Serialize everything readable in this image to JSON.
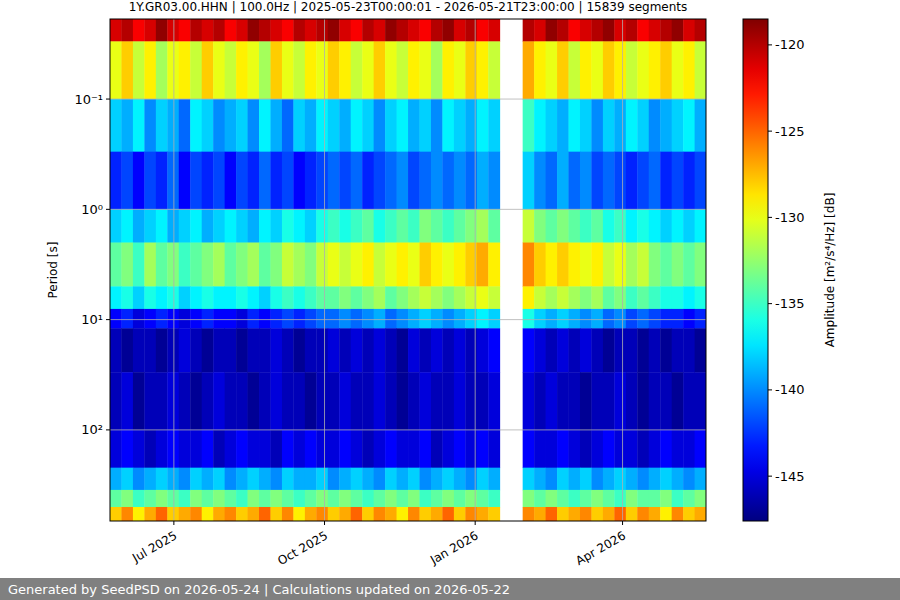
{
  "chart_data": {
    "type": "heatmap",
    "title": "1Y.GR03.00.HHN | 100.0Hz | 2025-05-23T00:00:01 - 2026-05-21T23:00:00 | 15839 segments",
    "ylabel": "Period [s]",
    "footer": "Generated by SeedPSD on 2026-05-24 | Calculations updated on 2026-05-22",
    "log": "y",
    "grid": true,
    "xlim": [
      "2025-05-23T00:00:01",
      "2026-05-21T23:00:00"
    ],
    "xticks": [
      {
        "value": "2025-07",
        "label": "Jul 2025"
      },
      {
        "value": "2025-10",
        "label": "Oct 2025"
      },
      {
        "value": "2026-01",
        "label": "Jan 2026"
      },
      {
        "value": "2026-04",
        "label": "Apr 2026"
      }
    ],
    "ylim": [
      0.0188,
      670
    ],
    "yticks": [
      {
        "value": 0.1,
        "label": "10⁻¹"
      },
      {
        "value": 1,
        "label": "10⁰"
      },
      {
        "value": 10,
        "label": "10¹"
      },
      {
        "value": 100,
        "label": "10²"
      }
    ],
    "x": [
      "2025-05-23",
      "2025-05-30",
      "2025-06-06",
      "2025-06-13",
      "2025-06-20",
      "2025-06-27",
      "2025-07-04",
      "2025-07-11",
      "2025-07-18",
      "2025-07-25",
      "2025-08-01",
      "2025-08-08",
      "2025-08-15",
      "2025-08-22",
      "2025-08-29",
      "2025-09-05",
      "2025-09-12",
      "2025-09-19",
      "2025-09-26",
      "2025-10-03",
      "2025-10-10",
      "2025-10-17",
      "2025-10-24",
      "2025-10-31",
      "2025-11-07",
      "2025-11-14",
      "2025-11-21",
      "2025-11-28",
      "2025-12-05",
      "2025-12-12",
      "2025-12-19",
      "2025-12-26",
      "2026-01-02",
      "2026-01-09",
      "2026-01-16",
      "2026-01-23",
      "2026-01-30",
      "2026-02-06",
      "2026-02-13",
      "2026-02-20",
      "2026-02-27",
      "2026-03-06",
      "2026-03-13",
      "2026-03-20",
      "2026-03-27",
      "2026-04-03",
      "2026-04-10",
      "2026-04-17",
      "2026-04-24",
      "2026-05-01",
      "2026-05-08",
      "2026-05-15"
    ],
    "y_edges": [
      0.0188,
      0.03,
      0.1,
      0.3,
      1,
      2,
      5,
      8,
      12,
      30,
      100,
      220,
      350,
      500,
      670
    ],
    "values": [
      [
        -121,
        -120,
        -122,
        -121,
        -119,
        -121,
        -122,
        -120,
        -121,
        -120,
        -122,
        -121,
        -119,
        -120,
        -121,
        -122,
        -120,
        -121,
        -120,
        -119,
        -121,
        -122,
        -120,
        -121,
        -119,
        -120,
        -121,
        -122,
        -120,
        -119,
        -121,
        -120,
        -122,
        -121,
        null,
        null,
        -120,
        -121,
        -119,
        -120,
        -122,
        -121,
        -120,
        -119,
        -121,
        -120,
        -122,
        -121,
        -120,
        -119,
        -121,
        -120
      ],
      [
        -130,
        -128,
        -131,
        -129,
        -132,
        -130,
        -129,
        -131,
        -128,
        -130,
        -131,
        -129,
        -130,
        -132,
        -128,
        -130,
        -131,
        -129,
        -130,
        -128,
        -129,
        -131,
        -130,
        -128,
        -130,
        -131,
        -129,
        -130,
        -132,
        -129,
        -130,
        -128,
        -129,
        -131,
        null,
        null,
        -127,
        -129,
        -130,
        -128,
        -131,
        -129,
        -130,
        -128,
        -129,
        -131,
        -130,
        -129,
        -128,
        -130,
        -129,
        -131
      ],
      [
        -138,
        -139,
        -137,
        -140,
        -138,
        -139,
        -141,
        -137,
        -138,
        -140,
        -139,
        -138,
        -140,
        -137,
        -139,
        -141,
        -138,
        -139,
        -137,
        -138,
        -139,
        -137,
        -138,
        -140,
        -138,
        -137,
        -139,
        -138,
        -140,
        -137,
        -138,
        -139,
        -137,
        -138,
        null,
        null,
        -135,
        -137,
        -138,
        -139,
        -137,
        -138,
        -140,
        -138,
        -139,
        -137,
        -138,
        -140,
        -139,
        -138,
        -137,
        -139
      ],
      [
        -143,
        -142,
        -144,
        -142,
        -143,
        -141,
        -144,
        -142,
        -143,
        -142,
        -144,
        -142,
        -143,
        -141,
        -143,
        -142,
        -144,
        -143,
        -142,
        -141,
        -142,
        -141,
        -143,
        -142,
        -141,
        -140,
        -142,
        -141,
        -140,
        -141,
        -140,
        -141,
        -139,
        -140,
        null,
        null,
        -138,
        -140,
        -141,
        -139,
        -141,
        -140,
        -142,
        -141,
        -142,
        -143,
        -142,
        -141,
        -143,
        -142,
        -143,
        -142
      ],
      [
        -138,
        -137,
        -139,
        -138,
        -137,
        -139,
        -138,
        -137,
        -139,
        -138,
        -137,
        -138,
        -139,
        -137,
        -138,
        -136,
        -137,
        -138,
        -136,
        -135,
        -136,
        -135,
        -134,
        -136,
        -135,
        -134,
        -135,
        -133,
        -134,
        -135,
        -134,
        -133,
        -132,
        -134,
        null,
        null,
        -131,
        -133,
        -134,
        -133,
        -134,
        -135,
        -134,
        -136,
        -135,
        -137,
        -136,
        -137,
        -138,
        -137,
        -138,
        -137
      ],
      [
        -134,
        -133,
        -135,
        -132,
        -134,
        -133,
        -135,
        -134,
        -133,
        -132,
        -134,
        -133,
        -132,
        -134,
        -133,
        -131,
        -132,
        -133,
        -131,
        -130,
        -131,
        -130,
        -129,
        -131,
        -130,
        -129,
        -130,
        -128,
        -129,
        -130,
        -129,
        -128,
        -127,
        -129,
        null,
        null,
        -126,
        -128,
        -129,
        -128,
        -129,
        -130,
        -129,
        -131,
        -130,
        -132,
        -131,
        -133,
        -134,
        -133,
        -134,
        -133
      ],
      [
        -137,
        -136,
        -138,
        -136,
        -137,
        -136,
        -138,
        -137,
        -136,
        -137,
        -137,
        -136,
        -137,
        -138,
        -136,
        -135,
        -136,
        -135,
        -134,
        -134,
        -133,
        -134,
        -133,
        -132,
        -134,
        -133,
        -132,
        -131,
        -132,
        -133,
        -132,
        -131,
        -130,
        -131,
        null,
        null,
        -129,
        -131,
        -132,
        -131,
        -132,
        -133,
        -132,
        -134,
        -133,
        -135,
        -134,
        -135,
        -136,
        -136,
        -137,
        -136
      ],
      [
        -144,
        -143,
        -145,
        -144,
        -143,
        -144,
        -145,
        -144,
        -143,
        -144,
        -144,
        -145,
        -143,
        -144,
        -143,
        -142,
        -143,
        -142,
        -141,
        -141,
        -140,
        -141,
        -140,
        -139,
        -141,
        -140,
        -139,
        -138,
        -139,
        -140,
        -139,
        -138,
        -137,
        -138,
        null,
        null,
        -136,
        -138,
        -139,
        -138,
        -139,
        -140,
        -139,
        -141,
        -140,
        -142,
        -141,
        -142,
        -143,
        -143,
        -144,
        -143
      ],
      [
        -146,
        -147,
        -146,
        -146,
        -147,
        -146,
        -145,
        -146,
        -147,
        -146,
        -146,
        -147,
        -146,
        -146,
        -145,
        -146,
        -147,
        -146,
        -146,
        -145,
        -146,
        -145,
        -146,
        -145,
        -146,
        -147,
        -145,
        -146,
        -145,
        -146,
        -145,
        -146,
        -145,
        -144,
        null,
        null,
        -144,
        -145,
        -146,
        -145,
        -146,
        -145,
        -146,
        -147,
        -146,
        -146,
        -147,
        -146,
        -147,
        -146,
        -146,
        -147
      ],
      [
        -146,
        -145,
        -147,
        -146,
        -146,
        -145,
        -146,
        -147,
        -146,
        -145,
        -146,
        -146,
        -147,
        -146,
        -145,
        -146,
        -146,
        -147,
        -146,
        -146,
        -145,
        -146,
        -146,
        -145,
        -146,
        -147,
        -146,
        -145,
        -146,
        -146,
        -145,
        -146,
        -146,
        -145,
        null,
        null,
        -145,
        -146,
        -145,
        -146,
        -146,
        -147,
        -146,
        -146,
        -145,
        -146,
        -147,
        -146,
        -146,
        -147,
        -146,
        -146
      ],
      [
        -145,
        -144,
        -145,
        -146,
        -145,
        -144,
        -145,
        -145,
        -144,
        -146,
        -145,
        -144,
        -145,
        -145,
        -146,
        -144,
        -145,
        -144,
        -145,
        -145,
        -144,
        -145,
        -146,
        -145,
        -144,
        -145,
        -145,
        -144,
        -146,
        -145,
        -144,
        -145,
        -144,
        -145,
        null,
        null,
        -144,
        -145,
        -145,
        -144,
        -145,
        -146,
        -145,
        -144,
        -145,
        -145,
        -146,
        -145,
        -144,
        -145,
        -145,
        -144
      ],
      [
        -139,
        -138,
        -140,
        -139,
        -138,
        -139,
        -140,
        -138,
        -139,
        -138,
        -140,
        -139,
        -138,
        -139,
        -140,
        -138,
        -139,
        -139,
        -138,
        -140,
        -139,
        -138,
        -139,
        -140,
        -138,
        -139,
        -138,
        -140,
        -139,
        -138,
        -139,
        -140,
        -138,
        -139,
        null,
        null,
        -138,
        -139,
        -140,
        -138,
        -139,
        -138,
        -140,
        -139,
        -138,
        -139,
        -140,
        -139,
        -138,
        -139,
        -140,
        -139
      ],
      [
        -134,
        -133,
        -135,
        -134,
        -133,
        -134,
        -135,
        -133,
        -134,
        -133,
        -134,
        -135,
        -133,
        -134,
        -133,
        -134,
        -135,
        -134,
        -133,
        -134,
        -133,
        -134,
        -135,
        -134,
        -133,
        -134,
        -133,
        -135,
        -134,
        -133,
        -134,
        -133,
        -134,
        -135,
        null,
        null,
        -133,
        -134,
        -133,
        -134,
        -135,
        -134,
        -133,
        -134,
        -135,
        -133,
        -134,
        -134,
        -133,
        -135,
        -134,
        -133
      ],
      [
        -128,
        -126,
        -129,
        -127,
        -125,
        -128,
        -127,
        -126,
        -129,
        -127,
        -126,
        -128,
        -127,
        -125,
        -128,
        -126,
        -129,
        -127,
        -126,
        -128,
        -127,
        -125,
        -128,
        -126,
        -127,
        -129,
        -126,
        -128,
        -127,
        -125,
        -128,
        -126,
        -127,
        -128,
        null,
        null,
        -126,
        -127,
        -125,
        -128,
        -127,
        -126,
        -128,
        -127,
        -125,
        -128,
        -126,
        -127,
        -129,
        -126,
        -128,
        -127
      ]
    ],
    "colorbar": {
      "label": "Amplitude [m²/s⁴/Hz] [dB]",
      "range": [
        -147.6,
        -118.5
      ],
      "ticks": [
        -145,
        -140,
        -135,
        -130,
        -125,
        -120
      ]
    }
  }
}
